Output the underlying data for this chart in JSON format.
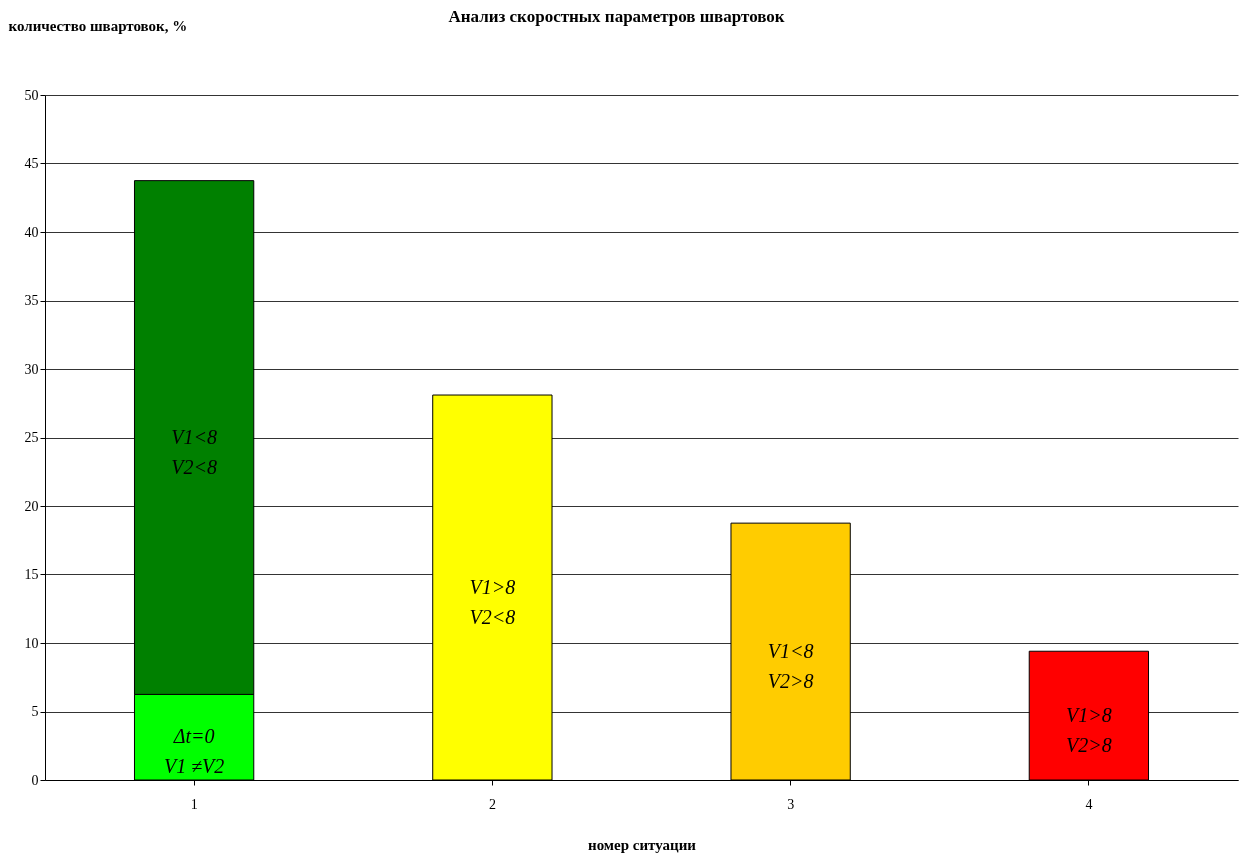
{
  "chart_data": {
    "type": "bar",
    "title": "Анализ скоростных параметров швартовок",
    "xlabel": "номер ситуации",
    "ylabel": "количество швартовок, %",
    "categories": [
      "1",
      "2",
      "3",
      "4"
    ],
    "stacked": true,
    "series": [
      {
        "color": "#00ff00",
        "values": [
          6.25,
          null,
          null,
          null
        ],
        "value_labels": [
          "Δt=0\nV1  ≠V2",
          null,
          null,
          null
        ]
      },
      {
        "colors": [
          "#008000",
          "#ffff00",
          "#ffcc00",
          "#ff0000"
        ],
        "values": [
          37.5,
          28.1,
          18.75,
          9.4
        ],
        "value_labels": [
          "V1<8\nV2<8",
          "V1>8\nV2<8",
          "V1<8\nV2>8",
          "V1>8\nV2>8"
        ]
      }
    ],
    "ylim": [
      0,
      50
    ],
    "yticks": [
      0,
      5,
      10,
      15,
      20,
      25,
      30,
      35,
      40,
      45,
      50
    ],
    "grid": "y"
  }
}
